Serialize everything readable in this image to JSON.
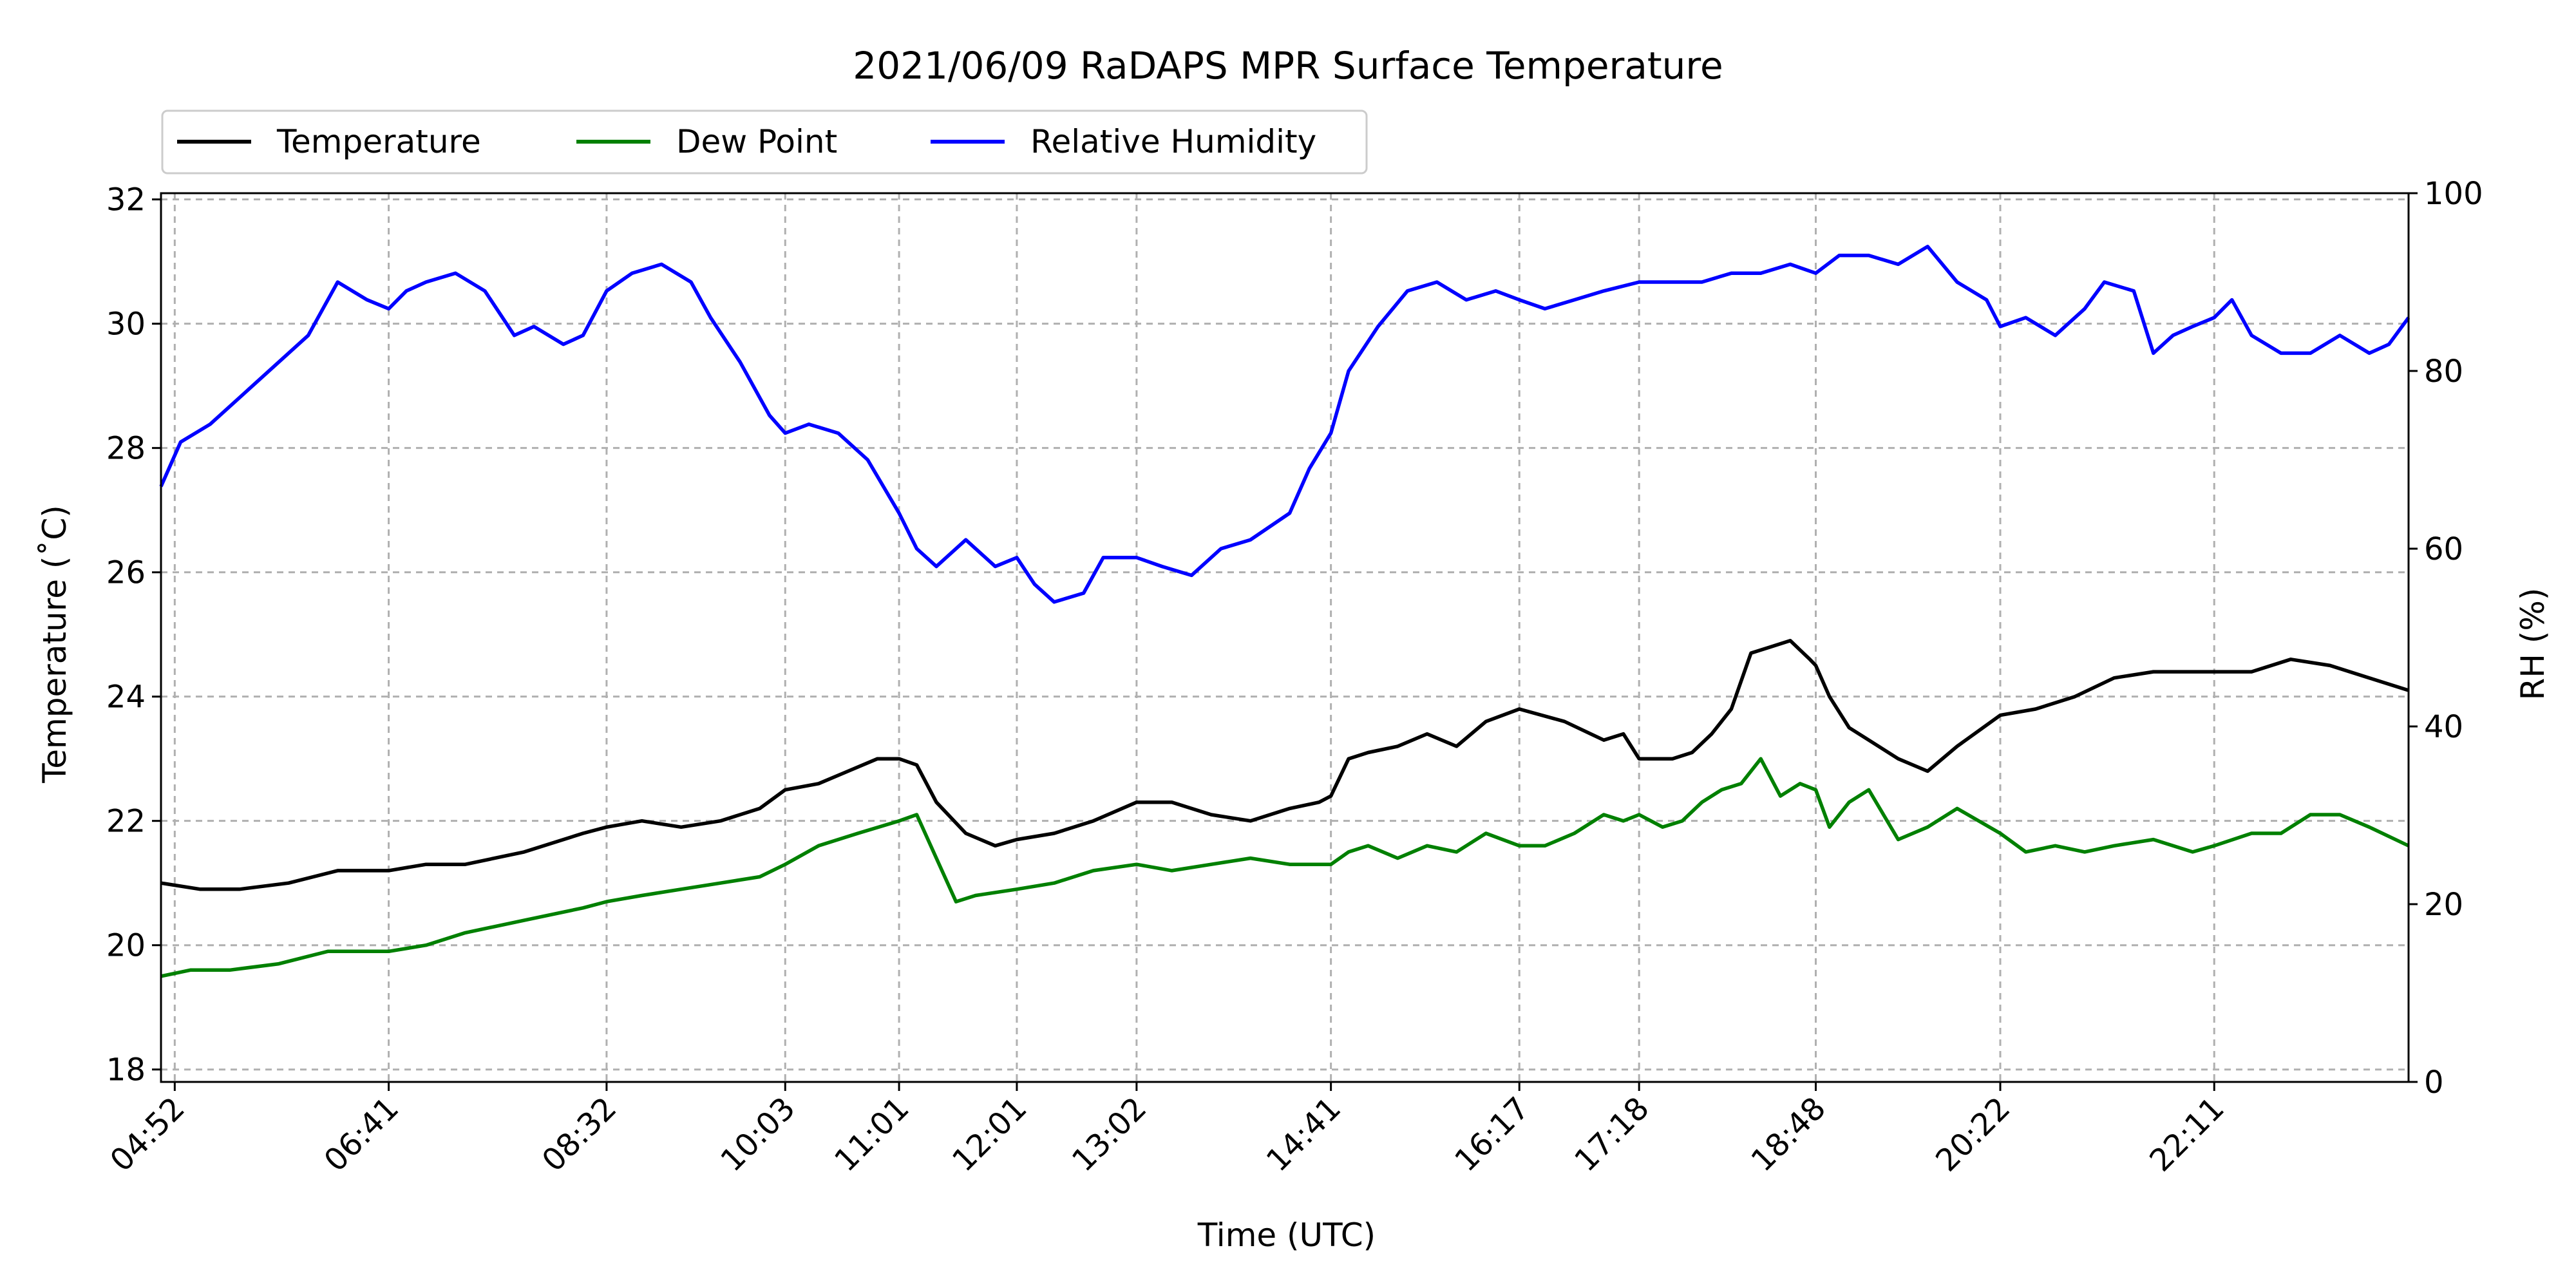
{
  "chart_data": {
    "type": "line",
    "title": "2021/06/09 RaDAPS MPR Surface Temperature",
    "xlabel": "Time (UTC)",
    "ylabel": "Temperature ($^\\circ$C)",
    "ylabel_display": "Temperature (˚C)",
    "y2label": "RH (%)",
    "x_ticks": [
      "04:52",
      "06:41",
      "08:32",
      "10:03",
      "11:01",
      "12:01",
      "13:02",
      "14:41",
      "16:17",
      "17:18",
      "18:48",
      "20:22",
      "22:11"
    ],
    "x_range": [
      "04:45",
      "23:50"
    ],
    "ylim": [
      17.8,
      32.1
    ],
    "y_ticks": [
      18,
      20,
      22,
      24,
      26,
      28,
      30,
      32
    ],
    "y2lim": [
      0,
      100
    ],
    "y2_ticks": [
      0,
      20,
      40,
      60,
      80,
      100
    ],
    "grid": true,
    "legend_position": "top-left, above plot",
    "series": [
      {
        "name": "Temperature",
        "axis": "left",
        "color": "#000000",
        "x": [
          "04:45",
          "05:05",
          "05:25",
          "05:50",
          "06:15",
          "06:41",
          "07:00",
          "07:20",
          "07:50",
          "08:20",
          "08:32",
          "08:50",
          "09:10",
          "09:30",
          "09:50",
          "10:03",
          "10:20",
          "10:35",
          "10:50",
          "11:01",
          "11:10",
          "11:20",
          "11:35",
          "11:50",
          "12:01",
          "12:20",
          "12:40",
          "13:02",
          "13:20",
          "13:40",
          "14:00",
          "14:20",
          "14:35",
          "14:41",
          "14:50",
          "15:00",
          "15:15",
          "15:30",
          "15:45",
          "16:00",
          "16:17",
          "16:40",
          "17:00",
          "17:10",
          "17:18",
          "17:35",
          "17:45",
          "17:55",
          "18:05",
          "18:15",
          "18:25",
          "18:35",
          "18:45",
          "18:48",
          "18:55",
          "19:05",
          "19:15",
          "19:30",
          "19:45",
          "20:00",
          "20:22",
          "20:40",
          "21:00",
          "21:20",
          "21:40",
          "22:00",
          "22:11",
          "22:30",
          "22:50",
          "23:10",
          "23:30",
          "23:50"
        ],
        "y": [
          21.0,
          20.9,
          20.9,
          21.0,
          21.2,
          21.2,
          21.3,
          21.3,
          21.5,
          21.8,
          21.9,
          22.0,
          21.9,
          22.0,
          22.2,
          22.5,
          22.6,
          22.8,
          23.0,
          23.0,
          22.9,
          22.3,
          21.8,
          21.6,
          21.7,
          21.8,
          22.0,
          22.3,
          22.3,
          22.1,
          22.0,
          22.2,
          22.3,
          22.4,
          23.0,
          23.1,
          23.2,
          23.4,
          23.2,
          23.6,
          23.8,
          23.6,
          23.3,
          23.4,
          23.0,
          23.0,
          23.1,
          23.4,
          23.8,
          24.7,
          24.8,
          24.9,
          24.6,
          24.5,
          24.0,
          23.5,
          23.3,
          23.0,
          22.8,
          23.2,
          23.7,
          23.8,
          24.0,
          24.3,
          24.4,
          24.4,
          24.4,
          24.4,
          24.6,
          24.5,
          24.3,
          24.1
        ]
      },
      {
        "name": "Dew Point",
        "axis": "left",
        "color": "#008000",
        "x": [
          "04:45",
          "05:00",
          "05:20",
          "05:45",
          "06:10",
          "06:41",
          "07:00",
          "07:20",
          "07:50",
          "08:20",
          "08:32",
          "08:50",
          "09:10",
          "09:30",
          "09:50",
          "10:03",
          "10:20",
          "10:40",
          "11:01",
          "11:10",
          "11:20",
          "11:30",
          "11:40",
          "12:01",
          "12:20",
          "12:40",
          "13:02",
          "13:20",
          "13:40",
          "14:00",
          "14:20",
          "14:41",
          "14:50",
          "15:00",
          "15:15",
          "15:30",
          "15:45",
          "16:00",
          "16:17",
          "16:30",
          "16:45",
          "17:00",
          "17:10",
          "17:18",
          "17:30",
          "17:40",
          "17:50",
          "18:00",
          "18:10",
          "18:20",
          "18:30",
          "18:40",
          "18:48",
          "18:55",
          "19:05",
          "19:15",
          "19:30",
          "19:45",
          "20:00",
          "20:22",
          "20:35",
          "20:50",
          "21:05",
          "21:20",
          "21:40",
          "22:00",
          "22:11",
          "22:30",
          "22:45",
          "23:00",
          "23:15",
          "23:30",
          "23:50"
        ],
        "y": [
          19.5,
          19.6,
          19.6,
          19.7,
          19.9,
          19.9,
          20.0,
          20.2,
          20.4,
          20.6,
          20.7,
          20.8,
          20.9,
          21.0,
          21.1,
          21.3,
          21.6,
          21.8,
          22.0,
          22.1,
          21.4,
          20.7,
          20.8,
          20.9,
          21.0,
          21.2,
          21.3,
          21.2,
          21.3,
          21.4,
          21.3,
          21.3,
          21.5,
          21.6,
          21.4,
          21.6,
          21.5,
          21.8,
          21.6,
          21.6,
          21.8,
          22.1,
          22.0,
          22.1,
          21.9,
          22.0,
          22.3,
          22.5,
          22.6,
          23.0,
          22.4,
          22.6,
          22.5,
          21.9,
          22.3,
          22.5,
          21.7,
          21.9,
          22.2,
          21.8,
          21.5,
          21.6,
          21.5,
          21.6,
          21.7,
          21.5,
          21.6,
          21.8,
          21.8,
          22.1,
          22.1,
          21.9,
          21.6
        ]
      },
      {
        "name": "Relative Humidity",
        "axis": "right",
        "color": "#0000ff",
        "x": [
          "04:45",
          "04:55",
          "05:10",
          "05:30",
          "05:50",
          "06:00",
          "06:15",
          "06:30",
          "06:41",
          "06:50",
          "07:00",
          "07:15",
          "07:30",
          "07:45",
          "07:55",
          "08:10",
          "08:20",
          "08:32",
          "08:45",
          "09:00",
          "09:15",
          "09:25",
          "09:40",
          "09:55",
          "10:03",
          "10:15",
          "10:30",
          "10:45",
          "11:01",
          "11:10",
          "11:20",
          "11:35",
          "11:50",
          "12:01",
          "12:10",
          "12:20",
          "12:35",
          "12:45",
          "13:02",
          "13:15",
          "13:30",
          "13:45",
          "14:00",
          "14:20",
          "14:30",
          "14:41",
          "14:50",
          "15:05",
          "15:20",
          "15:35",
          "15:50",
          "16:05",
          "16:17",
          "16:30",
          "16:45",
          "17:00",
          "17:18",
          "17:35",
          "17:50",
          "18:05",
          "18:20",
          "18:35",
          "18:48",
          "19:00",
          "19:15",
          "19:30",
          "19:45",
          "20:00",
          "20:15",
          "20:22",
          "20:35",
          "20:50",
          "21:05",
          "21:15",
          "21:30",
          "21:40",
          "21:50",
          "22:00",
          "22:11",
          "22:20",
          "22:30",
          "22:45",
          "23:00",
          "23:15",
          "23:30",
          "23:40",
          "23:50"
        ],
        "y": [
          67,
          72,
          74,
          78,
          82,
          84,
          90,
          88,
          87,
          89,
          90,
          91,
          89,
          84,
          85,
          83,
          84,
          89,
          91,
          92,
          90,
          86,
          81,
          75,
          73,
          74,
          73,
          70,
          64,
          60,
          58,
          61,
          58,
          59,
          56,
          54,
          55,
          59,
          59,
          58,
          57,
          60,
          61,
          64,
          69,
          73,
          80,
          85,
          89,
          90,
          88,
          89,
          88,
          87,
          88,
          89,
          90,
          90,
          90,
          91,
          91,
          92,
          91,
          93,
          93,
          92,
          94,
          90,
          88,
          85,
          86,
          84,
          87,
          90,
          89,
          82,
          84,
          85,
          86,
          88,
          84,
          82,
          82,
          84,
          82,
          83,
          86
        ]
      }
    ]
  }
}
